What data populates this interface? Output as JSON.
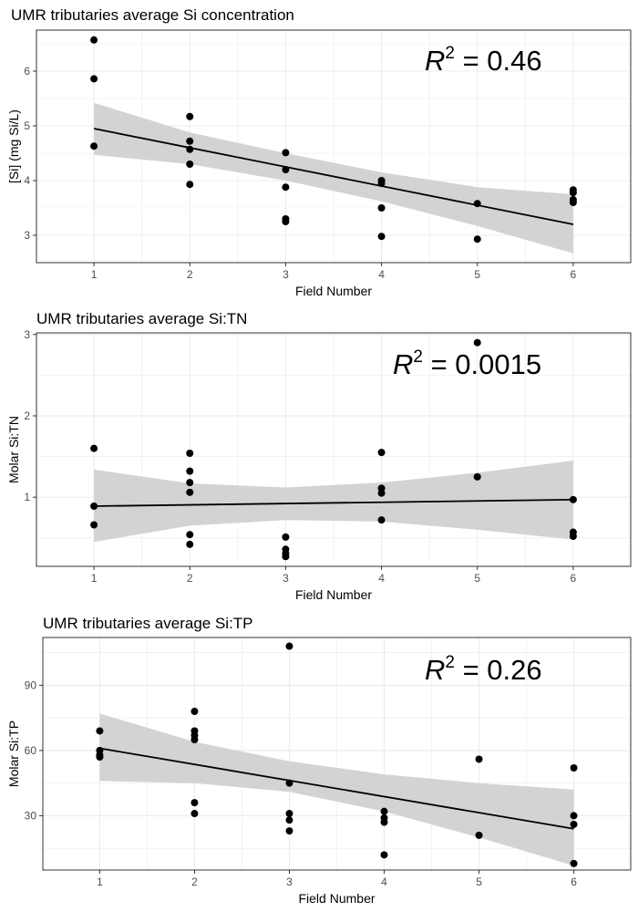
{
  "colors": {
    "point": "#000000",
    "fit_line": "#000000",
    "ribbon": "#d3d3d3",
    "grid": "#ebebeb",
    "panel_border": "#333333"
  },
  "chart_data": [
    {
      "type": "scatter",
      "title": "UMR tributaries average Si concentration",
      "xlabel": "Field Number",
      "ylabel": "[Si] (mg Si/L)",
      "xlim": [
        0.4,
        6.6
      ],
      "ylim": [
        2.5,
        6.75
      ],
      "x_ticks": [
        1,
        2,
        3,
        4,
        5,
        6
      ],
      "y_ticks": [
        3,
        4,
        5,
        6
      ],
      "grid": true,
      "annotation": {
        "base": "R",
        "sup": "2",
        "rest": " = 0.46"
      },
      "points": [
        {
          "x": 1,
          "y": 6.57
        },
        {
          "x": 1,
          "y": 5.86
        },
        {
          "x": 1,
          "y": 4.63
        },
        {
          "x": 2,
          "y": 5.17
        },
        {
          "x": 2,
          "y": 4.72
        },
        {
          "x": 2,
          "y": 4.57
        },
        {
          "x": 2,
          "y": 4.3
        },
        {
          "x": 2,
          "y": 3.93
        },
        {
          "x": 3,
          "y": 4.51
        },
        {
          "x": 3,
          "y": 4.2
        },
        {
          "x": 3,
          "y": 3.88
        },
        {
          "x": 3,
          "y": 3.3
        },
        {
          "x": 3,
          "y": 3.25
        },
        {
          "x": 4,
          "y": 4.0
        },
        {
          "x": 4,
          "y": 3.95
        },
        {
          "x": 4,
          "y": 3.5
        },
        {
          "x": 4,
          "y": 2.98
        },
        {
          "x": 5,
          "y": 3.58
        },
        {
          "x": 5,
          "y": 2.93
        },
        {
          "x": 6,
          "y": 3.83
        },
        {
          "x": 6,
          "y": 3.78
        },
        {
          "x": 6,
          "y": 3.65
        },
        {
          "x": 6,
          "y": 3.6
        }
      ],
      "fit": {
        "x": [
          1,
          6
        ],
        "y": [
          4.95,
          3.2
        ]
      },
      "confidence_band": {
        "x": [
          1,
          2,
          3,
          4,
          5,
          6
        ],
        "lower": [
          4.47,
          4.3,
          4.0,
          3.62,
          3.17,
          2.67
        ],
        "upper": [
          5.42,
          4.88,
          4.5,
          4.15,
          3.88,
          3.75
        ]
      }
    },
    {
      "type": "scatter",
      "title": "UMR tributaries average Si:TN",
      "xlabel": "Field Number",
      "ylabel": "Molar Si:TN",
      "xlim": [
        0.4,
        6.6
      ],
      "ylim": [
        0.15,
        3.02
      ],
      "x_ticks": [
        1,
        2,
        3,
        4,
        5,
        6
      ],
      "y_ticks": [
        1,
        2,
        3
      ],
      "grid": true,
      "annotation": {
        "base": "R",
        "sup": "2",
        "rest": " = 0.0015"
      },
      "points": [
        {
          "x": 1,
          "y": 1.6
        },
        {
          "x": 1,
          "y": 0.89
        },
        {
          "x": 1,
          "y": 0.66
        },
        {
          "x": 2,
          "y": 1.54
        },
        {
          "x": 2,
          "y": 1.32
        },
        {
          "x": 2,
          "y": 1.18
        },
        {
          "x": 2,
          "y": 1.06
        },
        {
          "x": 2,
          "y": 0.54
        },
        {
          "x": 2,
          "y": 0.42
        },
        {
          "x": 3,
          "y": 0.51
        },
        {
          "x": 3,
          "y": 0.36
        },
        {
          "x": 3,
          "y": 0.31
        },
        {
          "x": 3,
          "y": 0.27
        },
        {
          "x": 4,
          "y": 1.55
        },
        {
          "x": 4,
          "y": 1.11
        },
        {
          "x": 4,
          "y": 1.05
        },
        {
          "x": 4,
          "y": 0.72
        },
        {
          "x": 5,
          "y": 2.9
        },
        {
          "x": 5,
          "y": 1.25
        },
        {
          "x": 6,
          "y": 0.97
        },
        {
          "x": 6,
          "y": 0.57
        },
        {
          "x": 6,
          "y": 0.52
        }
      ],
      "fit": {
        "x": [
          1,
          6
        ],
        "y": [
          0.89,
          0.97
        ]
      },
      "confidence_band": {
        "x": [
          1,
          2,
          3,
          4,
          5,
          6
        ],
        "lower": [
          0.45,
          0.65,
          0.72,
          0.7,
          0.6,
          0.48
        ],
        "upper": [
          1.34,
          1.17,
          1.12,
          1.18,
          1.3,
          1.45
        ]
      }
    },
    {
      "type": "scatter",
      "title": "UMR tributaries average Si:TP",
      "xlabel": "Field Number",
      "ylabel": "Molar Si:TP",
      "xlim": [
        0.4,
        6.6
      ],
      "ylim": [
        5,
        112
      ],
      "x_ticks": [
        1,
        2,
        3,
        4,
        5,
        6
      ],
      "y_ticks": [
        30,
        60,
        90
      ],
      "grid": true,
      "annotation": {
        "base": "R",
        "sup": "2",
        "rest": " = 0.26"
      },
      "points": [
        {
          "x": 1,
          "y": 69
        },
        {
          "x": 1,
          "y": 60
        },
        {
          "x": 1,
          "y": 58
        },
        {
          "x": 1,
          "y": 57
        },
        {
          "x": 2,
          "y": 78
        },
        {
          "x": 2,
          "y": 69
        },
        {
          "x": 2,
          "y": 67
        },
        {
          "x": 2,
          "y": 65
        },
        {
          "x": 2,
          "y": 36
        },
        {
          "x": 2,
          "y": 31
        },
        {
          "x": 3,
          "y": 108
        },
        {
          "x": 3,
          "y": 45
        },
        {
          "x": 3,
          "y": 31
        },
        {
          "x": 3,
          "y": 28
        },
        {
          "x": 3,
          "y": 23
        },
        {
          "x": 4,
          "y": 32
        },
        {
          "x": 4,
          "y": 29
        },
        {
          "x": 4,
          "y": 27
        },
        {
          "x": 4,
          "y": 12
        },
        {
          "x": 5,
          "y": 56
        },
        {
          "x": 5,
          "y": 21
        },
        {
          "x": 6,
          "y": 52
        },
        {
          "x": 6,
          "y": 30
        },
        {
          "x": 6,
          "y": 26
        },
        {
          "x": 6,
          "y": 8
        }
      ],
      "fit": {
        "x": [
          1,
          6
        ],
        "y": [
          61,
          24
        ]
      },
      "confidence_band": {
        "x": [
          1,
          2,
          3,
          4,
          5,
          6
        ],
        "lower": [
          46,
          45,
          41,
          32,
          20,
          7
        ],
        "upper": [
          77,
          64,
          55,
          49,
          45,
          42
        ]
      }
    }
  ]
}
